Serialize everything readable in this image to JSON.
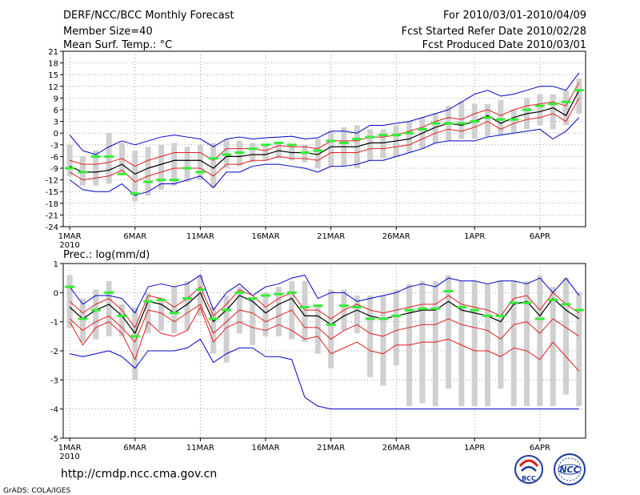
{
  "header": {
    "left": [
      "DERF/NCC/BCC Monthly Forecast",
      "Member Size=40",
      "Mean Surf. Temp.: °C"
    ],
    "right": [
      "For 2010/03/01-2010/04/09",
      "Fcst Started Refer Date 2010/02/28",
      "Fcst Produced Date 2010/03/01"
    ]
  },
  "footer": {
    "url": "http://cmdp.ncc.cma.gov.cn",
    "grads": "GrADS: COLA/IGES",
    "logo_bcc": "BCC",
    "logo_ncc": "NCC"
  },
  "colors": {
    "mean": "#000000",
    "spread": "#e02020",
    "envelope": "#0000cc",
    "box": "#d0d0d0",
    "observed": "#33ee33"
  },
  "chart_data": [
    {
      "type": "line",
      "title": "Mean Surf. Temp.: °C",
      "x_tick_labels": [
        "1MAR",
        "6MAR",
        "11MAR",
        "16MAR",
        "21MAR",
        "26MAR",
        "1APR",
        "6APR"
      ],
      "x_tick_days": [
        1,
        6,
        11,
        16,
        21,
        26,
        32,
        37
      ],
      "x_sublabel": "2010",
      "ylim": [
        -24,
        21
      ],
      "yticks": [
        21,
        18,
        15,
        12,
        9,
        6,
        3,
        0,
        -3,
        -6,
        -9,
        -12,
        -15,
        -18,
        -21,
        -24
      ],
      "days": [
        1,
        2,
        3,
        4,
        5,
        6,
        7,
        8,
        9,
        10,
        11,
        12,
        13,
        14,
        15,
        16,
        17,
        18,
        19,
        20,
        21,
        22,
        23,
        24,
        25,
        26,
        27,
        28,
        29,
        30,
        31,
        32,
        33,
        34,
        35,
        36,
        37,
        38,
        39,
        40
      ],
      "series": [
        {
          "name": "max",
          "values": [
            -0.5,
            -4.5,
            -5.5,
            -3.5,
            -2,
            -3,
            -2,
            -1,
            -0.5,
            -1,
            -1.5,
            -3.5,
            -1.5,
            -1,
            -1.5,
            -1.2,
            -1,
            -0.8,
            -1.5,
            -1.2,
            0.5,
            0.5,
            0,
            2,
            2,
            2.5,
            3,
            4,
            5,
            6,
            8,
            10,
            11,
            9.5,
            10,
            11,
            12,
            12,
            11,
            15.5
          ]
        },
        {
          "name": "upper",
          "values": [
            -7,
            -8,
            -8,
            -7.5,
            -6.5,
            -8.5,
            -7,
            -6,
            -5,
            -5,
            -5,
            -7,
            -4,
            -4,
            -4,
            -4.5,
            -3.2,
            -3.5,
            -3.5,
            -4,
            -2,
            -2,
            -2,
            -1,
            -1,
            -0.5,
            0.5,
            1.5,
            3,
            4,
            3.5,
            5,
            6,
            4.5,
            6,
            7,
            7.5,
            8,
            7,
            13
          ]
        },
        {
          "name": "mean",
          "values": [
            -8.5,
            -10,
            -10,
            -9.5,
            -8,
            -10.5,
            -9,
            -8,
            -7,
            -7,
            -7,
            -9,
            -6,
            -6,
            -5.5,
            -5.5,
            -4.5,
            -5,
            -5,
            -5.5,
            -3.5,
            -3.5,
            -3.5,
            -2.5,
            -2.5,
            -2,
            -1.5,
            0,
            1.5,
            2.5,
            2,
            3,
            4.5,
            2.5,
            4,
            5,
            5.5,
            6.5,
            4.5,
            11
          ]
        },
        {
          "name": "lower",
          "values": [
            -10,
            -12,
            -11.5,
            -11,
            -9.5,
            -12.5,
            -11,
            -10,
            -9,
            -9,
            -9,
            -11,
            -8,
            -8,
            -7,
            -7,
            -6,
            -6.5,
            -6.5,
            -7,
            -5,
            -5,
            -5,
            -4,
            -4,
            -3.5,
            -3,
            -1.5,
            0,
            1,
            0.5,
            1.5,
            3,
            1,
            2.5,
            3.5,
            4,
            5,
            3,
            9
          ]
        },
        {
          "name": "min",
          "values": [
            -12,
            -14.5,
            -15,
            -15,
            -13,
            -16,
            -15,
            -13,
            -13,
            -12,
            -11,
            -14,
            -10,
            -10,
            -8.5,
            -8,
            -8,
            -8.5,
            -9,
            -10,
            -8.5,
            -8.5,
            -8,
            -7,
            -7,
            -6,
            -5,
            -4,
            -2.5,
            -2,
            -2,
            -2,
            -1,
            -0.5,
            0,
            0.5,
            1,
            -1.5,
            0.5,
            4
          ]
        },
        {
          "name": "observed",
          "values": [
            -9,
            -10,
            -6,
            -6,
            -10.5,
            -15.5,
            -12.5,
            -12,
            -12,
            -9,
            -10,
            -6.5,
            -5.5,
            -5,
            -4,
            -3,
            -2.5,
            -3,
            -5,
            -4.5,
            -2,
            -2.5,
            -1.5,
            -1,
            -0.5,
            -0.5,
            0,
            1,
            2.5,
            2.5,
            2.5,
            3,
            4,
            3.5,
            3.5,
            6,
            7,
            7.5,
            8,
            11
          ]
        },
        {
          "name": "box_top",
          "values": [
            -3,
            -6,
            -4.5,
            0,
            -2.5,
            -4.5,
            -3.5,
            -3,
            -2.5,
            -3.5,
            -3,
            -2.5,
            -1.5,
            -2,
            -2.5,
            -3,
            -2.5,
            -3,
            -3,
            -1.5,
            0.5,
            1.5,
            2,
            1,
            1,
            2,
            3,
            4,
            5,
            7,
            8,
            7.5,
            7.5,
            8.5,
            6,
            9,
            10,
            10,
            11,
            14
          ]
        },
        {
          "name": "box_bottom",
          "values": [
            -11,
            -13.5,
            -13.5,
            -13,
            -10.5,
            -17.5,
            -16,
            -14.5,
            -13.5,
            -12.5,
            -12,
            -14,
            -9,
            -8.5,
            -7.5,
            -7,
            -6.5,
            -7,
            -7.5,
            -9,
            -8.5,
            -8.5,
            -9,
            -7,
            -6.5,
            -6,
            -5,
            -4,
            -2.5,
            -2,
            -1.5,
            -1.5,
            -1,
            -0.5,
            0,
            1,
            2,
            1,
            2,
            5
          ]
        }
      ]
    },
    {
      "type": "line",
      "title": "Prec.: log(mm/d)",
      "x_tick_labels": [
        "1MAR",
        "6MAR",
        "11MAR",
        "16MAR",
        "21MAR",
        "26MAR",
        "1APR",
        "6APR"
      ],
      "x_tick_days": [
        1,
        6,
        11,
        16,
        21,
        26,
        32,
        37
      ],
      "x_sublabel": "2010",
      "ylim": [
        -5,
        1
      ],
      "yticks": [
        1,
        0,
        -1,
        -2,
        -3,
        -4,
        -5
      ],
      "days": [
        1,
        2,
        3,
        4,
        5,
        6,
        7,
        8,
        9,
        10,
        11,
        12,
        13,
        14,
        15,
        16,
        17,
        18,
        19,
        20,
        21,
        22,
        23,
        24,
        25,
        26,
        27,
        28,
        29,
        30,
        31,
        32,
        33,
        34,
        35,
        36,
        37,
        38,
        39,
        40
      ],
      "series": [
        {
          "name": "max",
          "values": [
            0.2,
            -0.4,
            -0.1,
            -0.1,
            -0.2,
            -0.7,
            0.2,
            0.3,
            0.2,
            0.3,
            0.6,
            -0.6,
            0,
            0.3,
            -0.1,
            0.2,
            0.3,
            0.5,
            0.6,
            -0.2,
            0,
            0,
            -0.3,
            -0.2,
            -0.1,
            0,
            0.2,
            0.3,
            0.2,
            0.5,
            0.4,
            0.4,
            0.3,
            0.4,
            0.4,
            0.3,
            0.5,
            0,
            0.5,
            -0.1
          ]
        },
        {
          "name": "mean",
          "values": [
            -0.5,
            -0.9,
            -0.6,
            -0.4,
            -0.8,
            -1.4,
            -0.3,
            -0.4,
            -0.7,
            -0.4,
            0,
            -1,
            -0.6,
            -0.1,
            -0.3,
            -0.7,
            -0.4,
            -0.2,
            -0.8,
            -0.8,
            -1.1,
            -0.8,
            -0.6,
            -0.8,
            -0.9,
            -0.8,
            -0.7,
            -0.6,
            -0.6,
            -0.3,
            -0.6,
            -0.7,
            -0.8,
            -1,
            -0.4,
            -0.3,
            -0.8,
            -0.2,
            -0.6,
            -0.9
          ]
        },
        {
          "name": "upper",
          "values": [
            -0.3,
            -0.7,
            -0.4,
            -0.2,
            -0.6,
            -1.2,
            -0.1,
            -0.2,
            -0.5,
            -0.2,
            0.2,
            -0.8,
            -0.4,
            0.1,
            -0.1,
            -0.5,
            -0.2,
            0,
            -0.6,
            -0.6,
            -0.9,
            -0.6,
            -0.4,
            -0.6,
            -0.7,
            -0.6,
            -0.5,
            -0.4,
            -0.4,
            -0.1,
            -0.4,
            -0.5,
            -0.6,
            -0.8,
            -0.2,
            -0.1,
            -0.6,
            0,
            -0.4,
            -0.7
          ]
        },
        {
          "name": "lower",
          "values": [
            -0.9,
            -1.3,
            -1,
            -0.8,
            -1.2,
            -1.7,
            -0.6,
            -0.7,
            -1,
            -0.7,
            -0.4,
            -1.4,
            -1,
            -0.6,
            -0.7,
            -1,
            -0.8,
            -0.6,
            -1.2,
            -1.2,
            -1.6,
            -1.3,
            -1.1,
            -1.4,
            -1.5,
            -1.3,
            -1.2,
            -1.1,
            -1.1,
            -0.9,
            -1.1,
            -1.2,
            -1.3,
            -1.6,
            -1.1,
            -1,
            -1.4,
            -0.9,
            -1.2,
            -1.5
          ]
        },
        {
          "name": "p_low",
          "values": [
            -1,
            -1.8,
            -1.2,
            -1,
            -1.4,
            -2.3,
            -1,
            -1.4,
            -1.5,
            -1.3,
            -0.5,
            -1.7,
            -1.2,
            -1,
            -1.2,
            -1.3,
            -1.1,
            -1.3,
            -1.6,
            -1.5,
            -2.1,
            -1.9,
            -1.7,
            -2,
            -2.1,
            -1.8,
            -1.8,
            -1.7,
            -1.7,
            -1.6,
            -1.8,
            -2,
            -2,
            -2.2,
            -1.9,
            -2,
            -2.3,
            -1.7,
            -2.2,
            -2.7
          ]
        },
        {
          "name": "min",
          "values": [
            -2.1,
            -2.2,
            -2.1,
            -2,
            -2.2,
            -2.6,
            -2,
            -2,
            -2,
            -1.9,
            -1.6,
            -2.4,
            -2.1,
            -1.9,
            -1.9,
            -2.2,
            -2.2,
            -2.3,
            -3.6,
            -3.9,
            -4,
            -4,
            -4,
            -4,
            -4,
            -4,
            -4,
            -4,
            -4,
            -4,
            -4,
            -4,
            -4,
            -4,
            -4,
            -4,
            -4,
            -4,
            -4,
            -4
          ]
        },
        {
          "name": "observed",
          "values": [
            0.2,
            -0.9,
            -0.6,
            0,
            -0.8,
            -1.5,
            -0.3,
            -0.25,
            -0.7,
            -0.2,
            0.1,
            -0.9,
            -0.6,
            0,
            -0.2,
            -0.1,
            -0.05,
            0,
            -0.5,
            -0.45,
            -1.1,
            -0.45,
            -0.5,
            -0.9,
            -0.9,
            -0.8,
            -0.6,
            -0.55,
            -0.55,
            0.05,
            -0.5,
            -0.6,
            -0.8,
            -0.8,
            -0.35,
            -0.35,
            -0.9,
            -0.25,
            -0.4,
            -0.6
          ]
        },
        {
          "name": "box_top",
          "values": [
            0.6,
            -0.2,
            0.1,
            0.4,
            -0.4,
            -0.5,
            0,
            -0.2,
            0.2,
            0.4,
            0.6,
            -0.5,
            -0.1,
            0.2,
            -0.2,
            0,
            0.2,
            0.4,
            0.4,
            -0.4,
            0.1,
            0.1,
            -0.1,
            -0.1,
            -0.1,
            0.1,
            0.3,
            0.4,
            0.4,
            0.6,
            0.4,
            0.4,
            0.3,
            0.4,
            0.4,
            0.4,
            0.6,
            0.2,
            0.5,
            0
          ]
        },
        {
          "name": "box_bottom",
          "values": [
            -1.2,
            -1.7,
            -1.6,
            -1.5,
            -1.5,
            -3,
            -1.4,
            -1.3,
            -1.4,
            -1.3,
            -0.8,
            -2.1,
            -2.4,
            -1.4,
            -1.8,
            -1.5,
            -1.5,
            -1.6,
            -1.7,
            -2.1,
            -2.6,
            -1.3,
            -1.4,
            -2.9,
            -3.2,
            -2.5,
            -3.9,
            -3.8,
            -3.9,
            -3.3,
            -3.9,
            -3.9,
            -3.9,
            -3.3,
            -3.9,
            -3.9,
            -3.9,
            -3.9,
            -3.5,
            -3.9
          ]
        }
      ]
    }
  ]
}
